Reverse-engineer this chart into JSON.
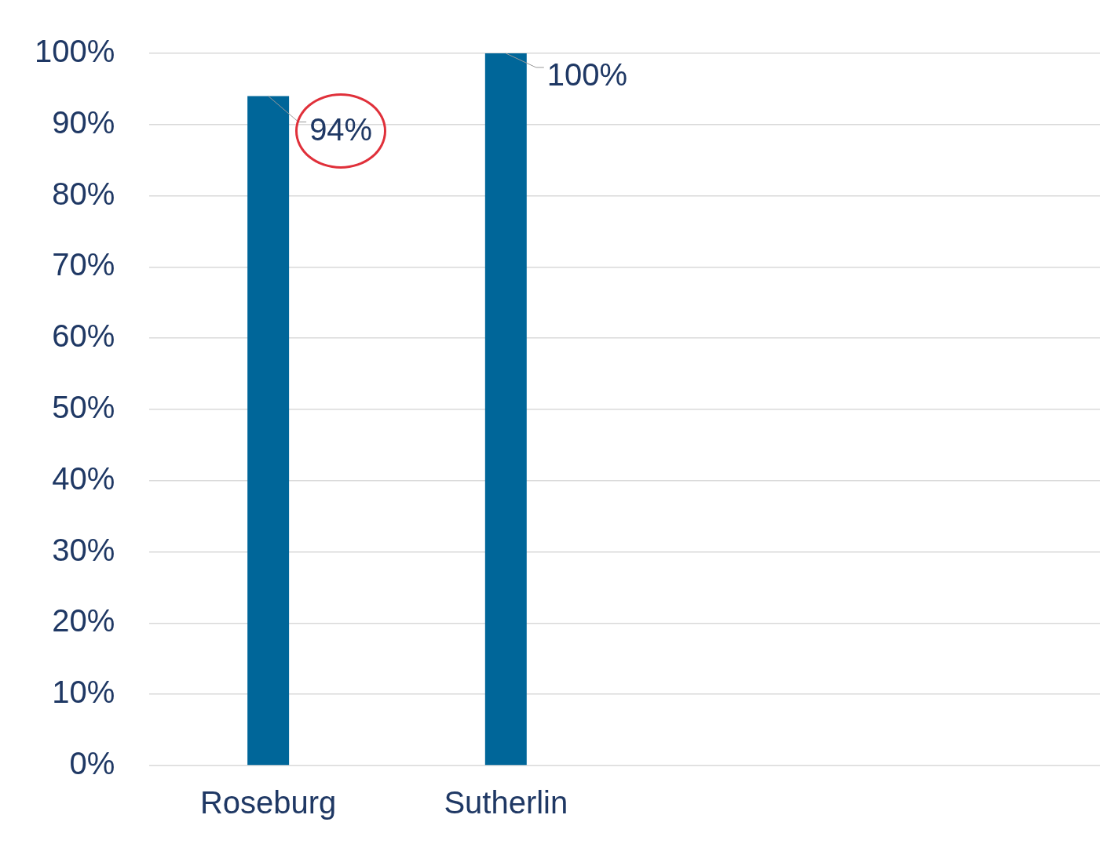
{
  "chart_data": {
    "type": "bar",
    "categories": [
      "Roseburg",
      "Sutherlin",
      null,
      null
    ],
    "values": [
      94,
      100,
      null,
      null
    ],
    "color": "#006699",
    "value_labels": [
      "94%",
      "100%",
      null,
      null
    ],
    "ylim": [
      0,
      100
    ],
    "yticks": [
      {
        "value": 0,
        "label": "0%"
      },
      {
        "value": 10,
        "label": "10%"
      },
      {
        "value": 20,
        "label": "20%"
      },
      {
        "value": 30,
        "label": "30%"
      },
      {
        "value": 40,
        "label": "40%"
      },
      {
        "value": 50,
        "label": "50%"
      },
      {
        "value": 60,
        "label": "60%"
      },
      {
        "value": 70,
        "label": "70%"
      },
      {
        "value": 80,
        "label": "80%"
      },
      {
        "value": 90,
        "label": "90%"
      },
      {
        "value": 100,
        "label": "100%"
      }
    ],
    "grid": "y",
    "legend": false
  }
}
